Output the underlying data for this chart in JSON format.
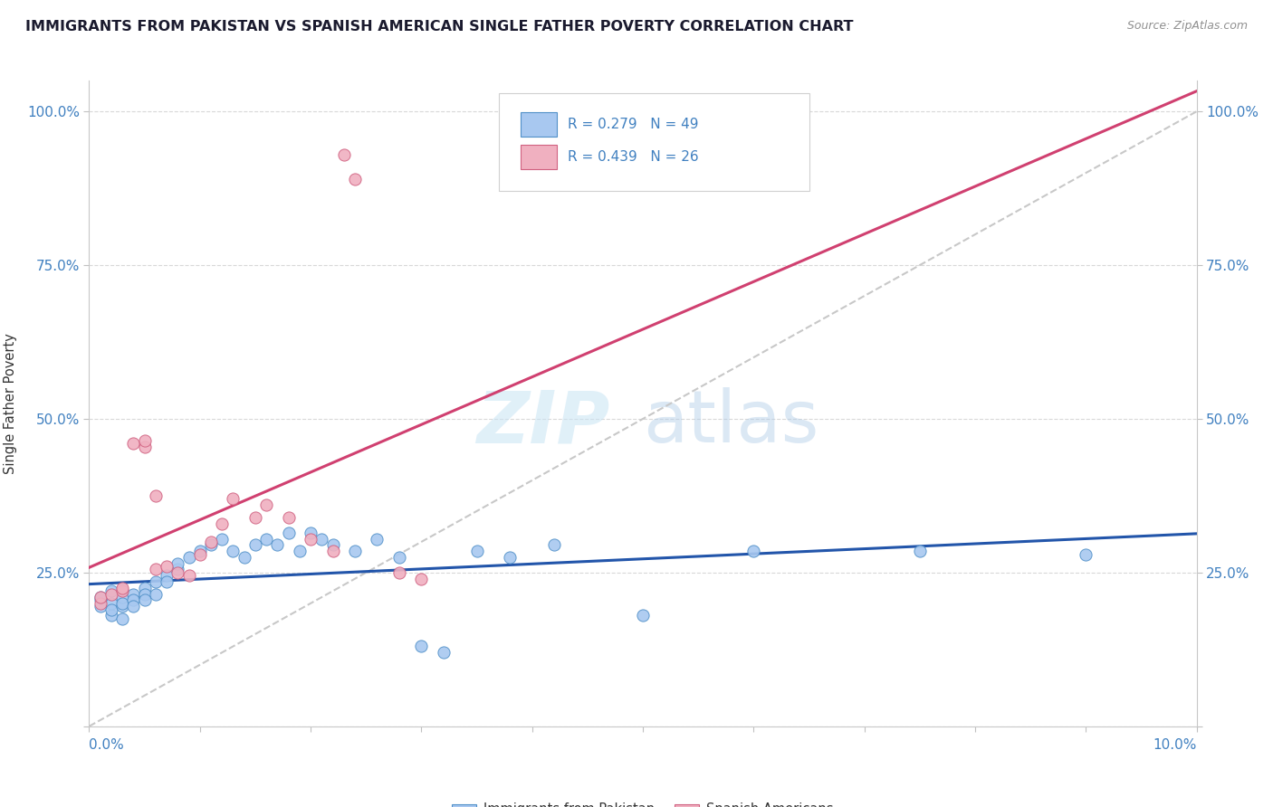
{
  "title": "IMMIGRANTS FROM PAKISTAN VS SPANISH AMERICAN SINGLE FATHER POVERTY CORRELATION CHART",
  "source": "Source: ZipAtlas.com",
  "ylabel": "Single Father Poverty",
  "watermark_zip": "ZIP",
  "watermark_atlas": "atlas",
  "legend_R1": "R = 0.279",
  "legend_N1": "N = 49",
  "legend_R2": "R = 0.439",
  "legend_N2": "N = 26",
  "color_pakistan_fill": "#a8c8f0",
  "color_pakistan_edge": "#5090c8",
  "color_spanish_fill": "#f0b0c0",
  "color_spanish_edge": "#d06080",
  "color_trend_pakistan": "#2255aa",
  "color_trend_spanish": "#d04070",
  "color_refline": "#c8c8c8",
  "color_grid": "#d8d8d8",
  "color_axis_text": "#4080c0",
  "color_title": "#1a1a2e",
  "color_source": "#909090",
  "xlim": [
    0.0,
    0.1
  ],
  "ylim": [
    0.0,
    1.05
  ],
  "yticks": [
    0.0,
    0.25,
    0.5,
    0.75,
    1.0
  ],
  "ytick_labels_left": [
    "",
    "25.0%",
    "50.0%",
    "75.0%",
    "100.0%"
  ],
  "ytick_labels_right": [
    "",
    "25.0%",
    "50.0%",
    "75.0%",
    "100.0%"
  ],
  "pak_x": [
    0.001,
    0.001,
    0.001,
    0.002,
    0.002,
    0.002,
    0.002,
    0.003,
    0.003,
    0.003,
    0.003,
    0.004,
    0.004,
    0.004,
    0.005,
    0.005,
    0.005,
    0.006,
    0.006,
    0.007,
    0.007,
    0.008,
    0.008,
    0.009,
    0.01,
    0.011,
    0.012,
    0.013,
    0.014,
    0.015,
    0.016,
    0.017,
    0.018,
    0.019,
    0.02,
    0.021,
    0.022,
    0.024,
    0.026,
    0.028,
    0.03,
    0.032,
    0.035,
    0.038,
    0.042,
    0.05,
    0.06,
    0.075,
    0.09
  ],
  "pak_y": [
    0.205,
    0.195,
    0.21,
    0.18,
    0.2,
    0.22,
    0.19,
    0.175,
    0.195,
    0.21,
    0.2,
    0.215,
    0.205,
    0.195,
    0.225,
    0.215,
    0.205,
    0.235,
    0.215,
    0.245,
    0.235,
    0.255,
    0.265,
    0.275,
    0.285,
    0.295,
    0.305,
    0.285,
    0.275,
    0.295,
    0.305,
    0.295,
    0.315,
    0.285,
    0.315,
    0.305,
    0.295,
    0.285,
    0.305,
    0.275,
    0.13,
    0.12,
    0.285,
    0.275,
    0.295,
    0.18,
    0.285,
    0.285,
    0.28
  ],
  "spa_x": [
    0.001,
    0.001,
    0.002,
    0.003,
    0.003,
    0.004,
    0.005,
    0.005,
    0.006,
    0.006,
    0.007,
    0.008,
    0.009,
    0.01,
    0.011,
    0.012,
    0.013,
    0.015,
    0.016,
    0.018,
    0.02,
    0.022,
    0.023,
    0.024,
    0.028,
    0.03
  ],
  "spa_y": [
    0.2,
    0.21,
    0.215,
    0.22,
    0.225,
    0.46,
    0.455,
    0.465,
    0.375,
    0.255,
    0.26,
    0.25,
    0.245,
    0.28,
    0.3,
    0.33,
    0.37,
    0.34,
    0.36,
    0.34,
    0.305,
    0.285,
    0.93,
    0.89,
    0.25,
    0.24
  ]
}
